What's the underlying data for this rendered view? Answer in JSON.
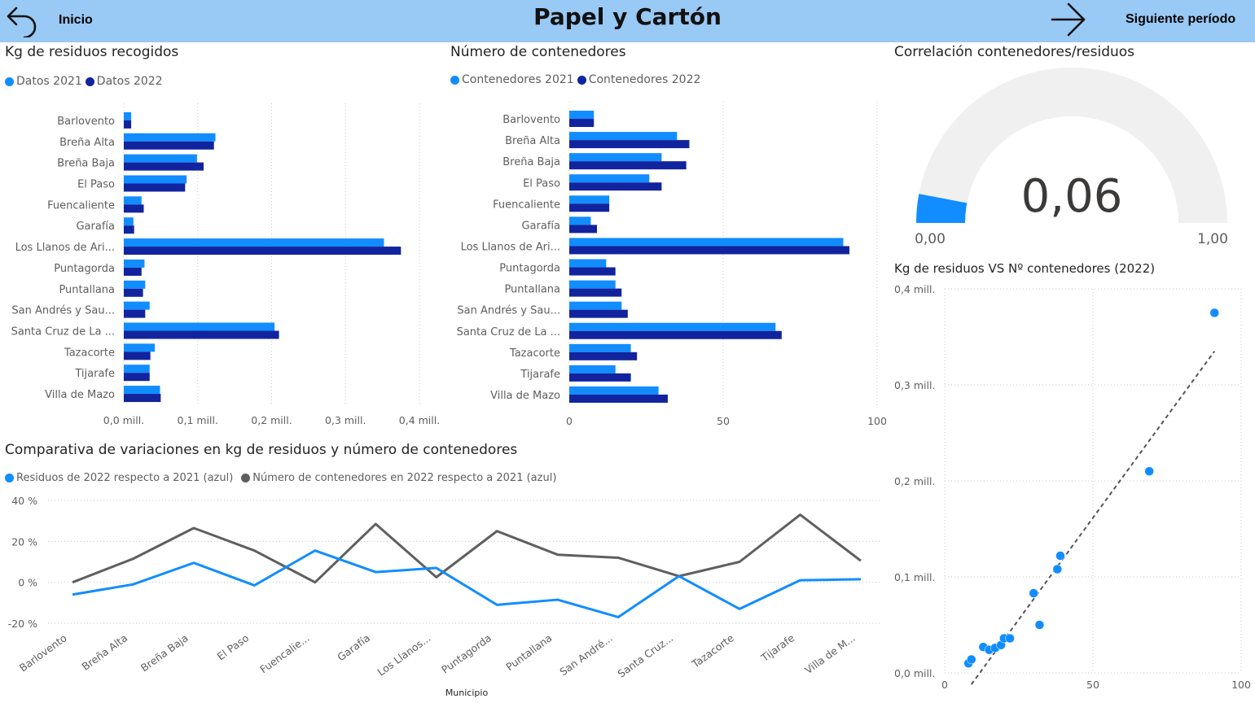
{
  "header": {
    "title": "Papel y Cartón",
    "back_label": "Inicio",
    "next_label": "Siguiente período"
  },
  "colors": {
    "light_blue": "#118dff",
    "dark_blue": "#12239e",
    "gray": "#5f5f5f",
    "header_bg": "#99c9f5",
    "gauge_track": "#f0f0f0"
  },
  "kg_chart": {
    "title": "Kg de residuos recogidos",
    "legend": [
      "Datos 2021",
      "Datos 2022"
    ]
  },
  "cont_chart": {
    "title": "Número de contenedores",
    "legend": [
      "Contenedores 2021",
      "Contenedores 2022"
    ]
  },
  "gauge": {
    "title": "Correlación contenedores/residuos",
    "value_label": "0,06",
    "min_label": "0,00",
    "max_label": "1,00"
  },
  "scatter_chart": {
    "title": "Kg de residuos VS Nº contenedores (2022)"
  },
  "line_chart": {
    "title": "Comparativa de variaciones en kg de residuos y número de contenedores",
    "legend": [
      "Residuos de 2022 respecto a 2021 (azul)",
      "Número de contenedores en 2022 respecto a 2021 (azul)"
    ]
  },
  "chart_data": [
    {
      "type": "bar",
      "orientation": "horizontal",
      "categories": [
        "Barlovento",
        "Breña Alta",
        "Breña Baja",
        "El Paso",
        "Fuencaliente",
        "Garafía",
        "Los Llanos de Ari...",
        "Puntagorda",
        "Puntallana",
        "San Andrés y Sau...",
        "Santa Cruz de La ...",
        "Tazacorte",
        "Tijarafe",
        "Villa de Mazo"
      ],
      "series": [
        {
          "name": "Datos 2021",
          "values": [
            0.01,
            0.124,
            0.099,
            0.085,
            0.024,
            0.013,
            0.352,
            0.028,
            0.029,
            0.035,
            0.204,
            0.042,
            0.035,
            0.049
          ]
        },
        {
          "name": "Datos 2022",
          "values": [
            0.01,
            0.122,
            0.108,
            0.083,
            0.027,
            0.014,
            0.375,
            0.024,
            0.026,
            0.029,
            0.21,
            0.036,
            0.035,
            0.05
          ]
        }
      ],
      "xlim": [
        0,
        0.4
      ],
      "x_ticks": [
        0,
        0.1,
        0.2,
        0.3,
        0.4
      ],
      "x_tick_labels": [
        "0,0 mill.",
        "0,1 mill.",
        "0,2 mill.",
        "0,3 mill.",
        "0,4 mill."
      ]
    },
    {
      "type": "bar",
      "orientation": "horizontal",
      "categories": [
        "Barlovento",
        "Breña Alta",
        "Breña Baja",
        "El Paso",
        "Fuencaliente",
        "Garafía",
        "Los Llanos de Ari...",
        "Puntagorda",
        "Puntallana",
        "San Andrés y Sau...",
        "Santa Cruz de La ...",
        "Tazacorte",
        "Tijarafe",
        "Villa de Mazo"
      ],
      "series": [
        {
          "name": "Contenedores 2021",
          "values": [
            8,
            35,
            30,
            26,
            13,
            7,
            89,
            12,
            15,
            17,
            67,
            20,
            15,
            29
          ]
        },
        {
          "name": "Contenedores 2022",
          "values": [
            8,
            39,
            38,
            30,
            13,
            9,
            91,
            15,
            17,
            19,
            69,
            22,
            20,
            32
          ]
        }
      ],
      "xlim": [
        0,
        100
      ],
      "x_ticks": [
        0,
        50,
        100
      ],
      "x_tick_labels": [
        "0",
        "50",
        "100"
      ]
    },
    {
      "type": "gauge",
      "value": 0.06,
      "min": 0,
      "max": 1
    },
    {
      "type": "scatter",
      "points": [
        {
          "x": 8,
          "y": 0.01
        },
        {
          "x": 9,
          "y": 0.014
        },
        {
          "x": 13,
          "y": 0.027
        },
        {
          "x": 15,
          "y": 0.024
        },
        {
          "x": 17,
          "y": 0.026
        },
        {
          "x": 19,
          "y": 0.029
        },
        {
          "x": 20,
          "y": 0.036
        },
        {
          "x": 22,
          "y": 0.036
        },
        {
          "x": 30,
          "y": 0.083
        },
        {
          "x": 32,
          "y": 0.05
        },
        {
          "x": 38,
          "y": 0.108
        },
        {
          "x": 39,
          "y": 0.122
        },
        {
          "x": 69,
          "y": 0.21
        },
        {
          "x": 91,
          "y": 0.375
        }
      ],
      "trendline": {
        "x": [
          9,
          91
        ],
        "y": [
          -0.012,
          0.335
        ]
      },
      "xlim": [
        0,
        100
      ],
      "ylim": [
        0,
        0.4
      ],
      "x_ticks": [
        0,
        50,
        100
      ],
      "x_tick_labels": [
        "0",
        "50",
        "100"
      ],
      "y_ticks": [
        0,
        0.1,
        0.2,
        0.3,
        0.4
      ],
      "y_tick_labels": [
        "0,0 mill.",
        "0,1 mill.",
        "0,2 mill.",
        "0,3 mill.",
        "0,4 mill."
      ]
    },
    {
      "type": "line",
      "x": [
        "Barlovento",
        "Breña Alta",
        "Breña Baja",
        "El Paso",
        "Fuencalie...",
        "Garafía",
        "Los Llanos...",
        "Puntagorda",
        "Puntallana",
        "San André...",
        "Santa Cruz...",
        "Tazacorte",
        "Tijarafe",
        "Villa de M..."
      ],
      "xlabel": "Municipio",
      "series": [
        {
          "name": "Residuos de 2022 respecto a 2021 (azul)",
          "values": [
            -6,
            -1,
            9.5,
            -1.5,
            15.5,
            5,
            7,
            -11,
            -8.5,
            -17,
            3,
            -13,
            1,
            1.5
          ]
        },
        {
          "name": "Número de contenedores en 2022 respecto a 2021 (azul)",
          "values": [
            0,
            11.5,
            26.5,
            15.5,
            0,
            28.5,
            2.5,
            25,
            13.5,
            12,
            3,
            10,
            33,
            10.5
          ]
        }
      ],
      "ylim": [
        -20,
        40
      ],
      "y_ticks": [
        -20,
        0,
        20,
        40
      ],
      "y_tick_labels": [
        "-20 %",
        "0 %",
        "20 %",
        "40 %"
      ]
    }
  ]
}
